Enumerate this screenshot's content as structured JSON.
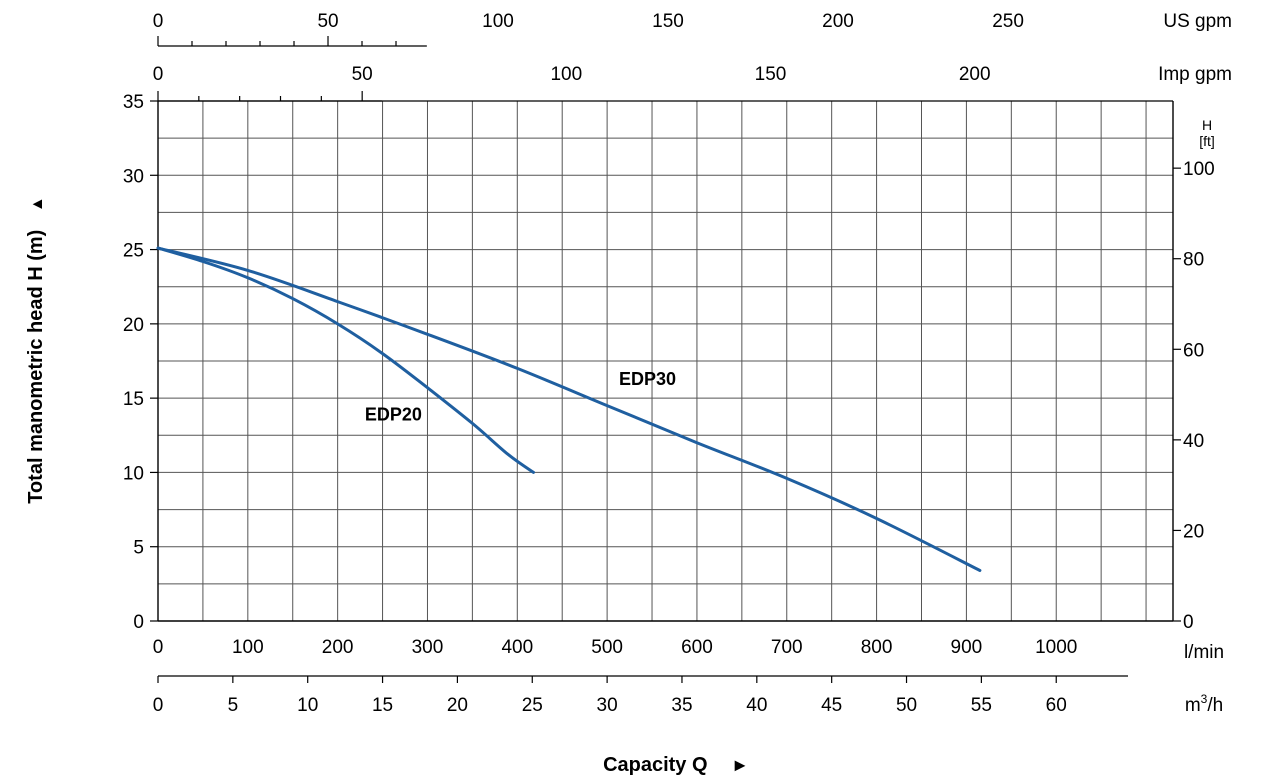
{
  "chart_data": {
    "type": "line",
    "title": "",
    "colors": {
      "curve": "#1f5fa0",
      "grid": "#555555",
      "axis": "#000000"
    },
    "grid": true,
    "ylabel": "Total manometric head H (m)",
    "ylabel_arrow": "▲",
    "xlabel": "Capacity Q",
    "xlabel_arrow": "►",
    "y_axis_left": {
      "unit": "m",
      "range": [
        0,
        35
      ],
      "ticks": [
        0,
        5,
        10,
        15,
        20,
        25,
        30,
        35
      ]
    },
    "y_axis_right": {
      "unit_top": "H",
      "unit_bottom": "[ft]",
      "factor_m_per_unit": 0.3048,
      "ticks": [
        0,
        20,
        40,
        60,
        80,
        100
      ]
    },
    "x_axis_bottom": {
      "unit": "l/min",
      "range": [
        0,
        1130
      ],
      "ticks": [
        0,
        100,
        200,
        300,
        400,
        500,
        600,
        700,
        800,
        900,
        1000
      ]
    },
    "x_axis_m3h": {
      "unit_base": "m",
      "unit_sup": "3",
      "unit_tail": "/h",
      "factor_lmin_per_unit": 16.6667,
      "ticks": [
        "0",
        "5",
        "10",
        "15",
        "20",
        "25",
        "30",
        "35",
        "40",
        "45",
        "50",
        "55",
        "60"
      ]
    },
    "x_axis_us": {
      "unit": "US gpm",
      "factor_lmin_per_unit": 3.7854,
      "ticks": [
        "0",
        "50",
        "100",
        "150",
        "200",
        "250"
      ]
    },
    "x_axis_imp": {
      "unit": "Imp gpm",
      "factor_lmin_per_unit": 4.5461,
      "ticks": [
        "0",
        "50",
        "100",
        "150",
        "200"
      ]
    },
    "series": [
      {
        "name": "EDP20",
        "label_at": [
          262,
          13.5
        ],
        "points": [
          [
            0,
            25.1
          ],
          [
            50,
            24.2
          ],
          [
            100,
            23.1
          ],
          [
            150,
            21.7
          ],
          [
            200,
            20.0
          ],
          [
            250,
            18.0
          ],
          [
            300,
            15.7
          ],
          [
            350,
            13.3
          ],
          [
            390,
            11.2
          ],
          [
            418,
            10.0
          ]
        ]
      },
      {
        "name": "EDP30",
        "label_at": [
          545,
          15.9
        ],
        "points": [
          [
            0,
            25.1
          ],
          [
            100,
            23.6
          ],
          [
            200,
            21.5
          ],
          [
            300,
            19.3
          ],
          [
            400,
            17.0
          ],
          [
            500,
            14.5
          ],
          [
            600,
            12.0
          ],
          [
            700,
            9.6
          ],
          [
            800,
            6.9
          ],
          [
            915,
            3.4
          ]
        ]
      }
    ]
  }
}
